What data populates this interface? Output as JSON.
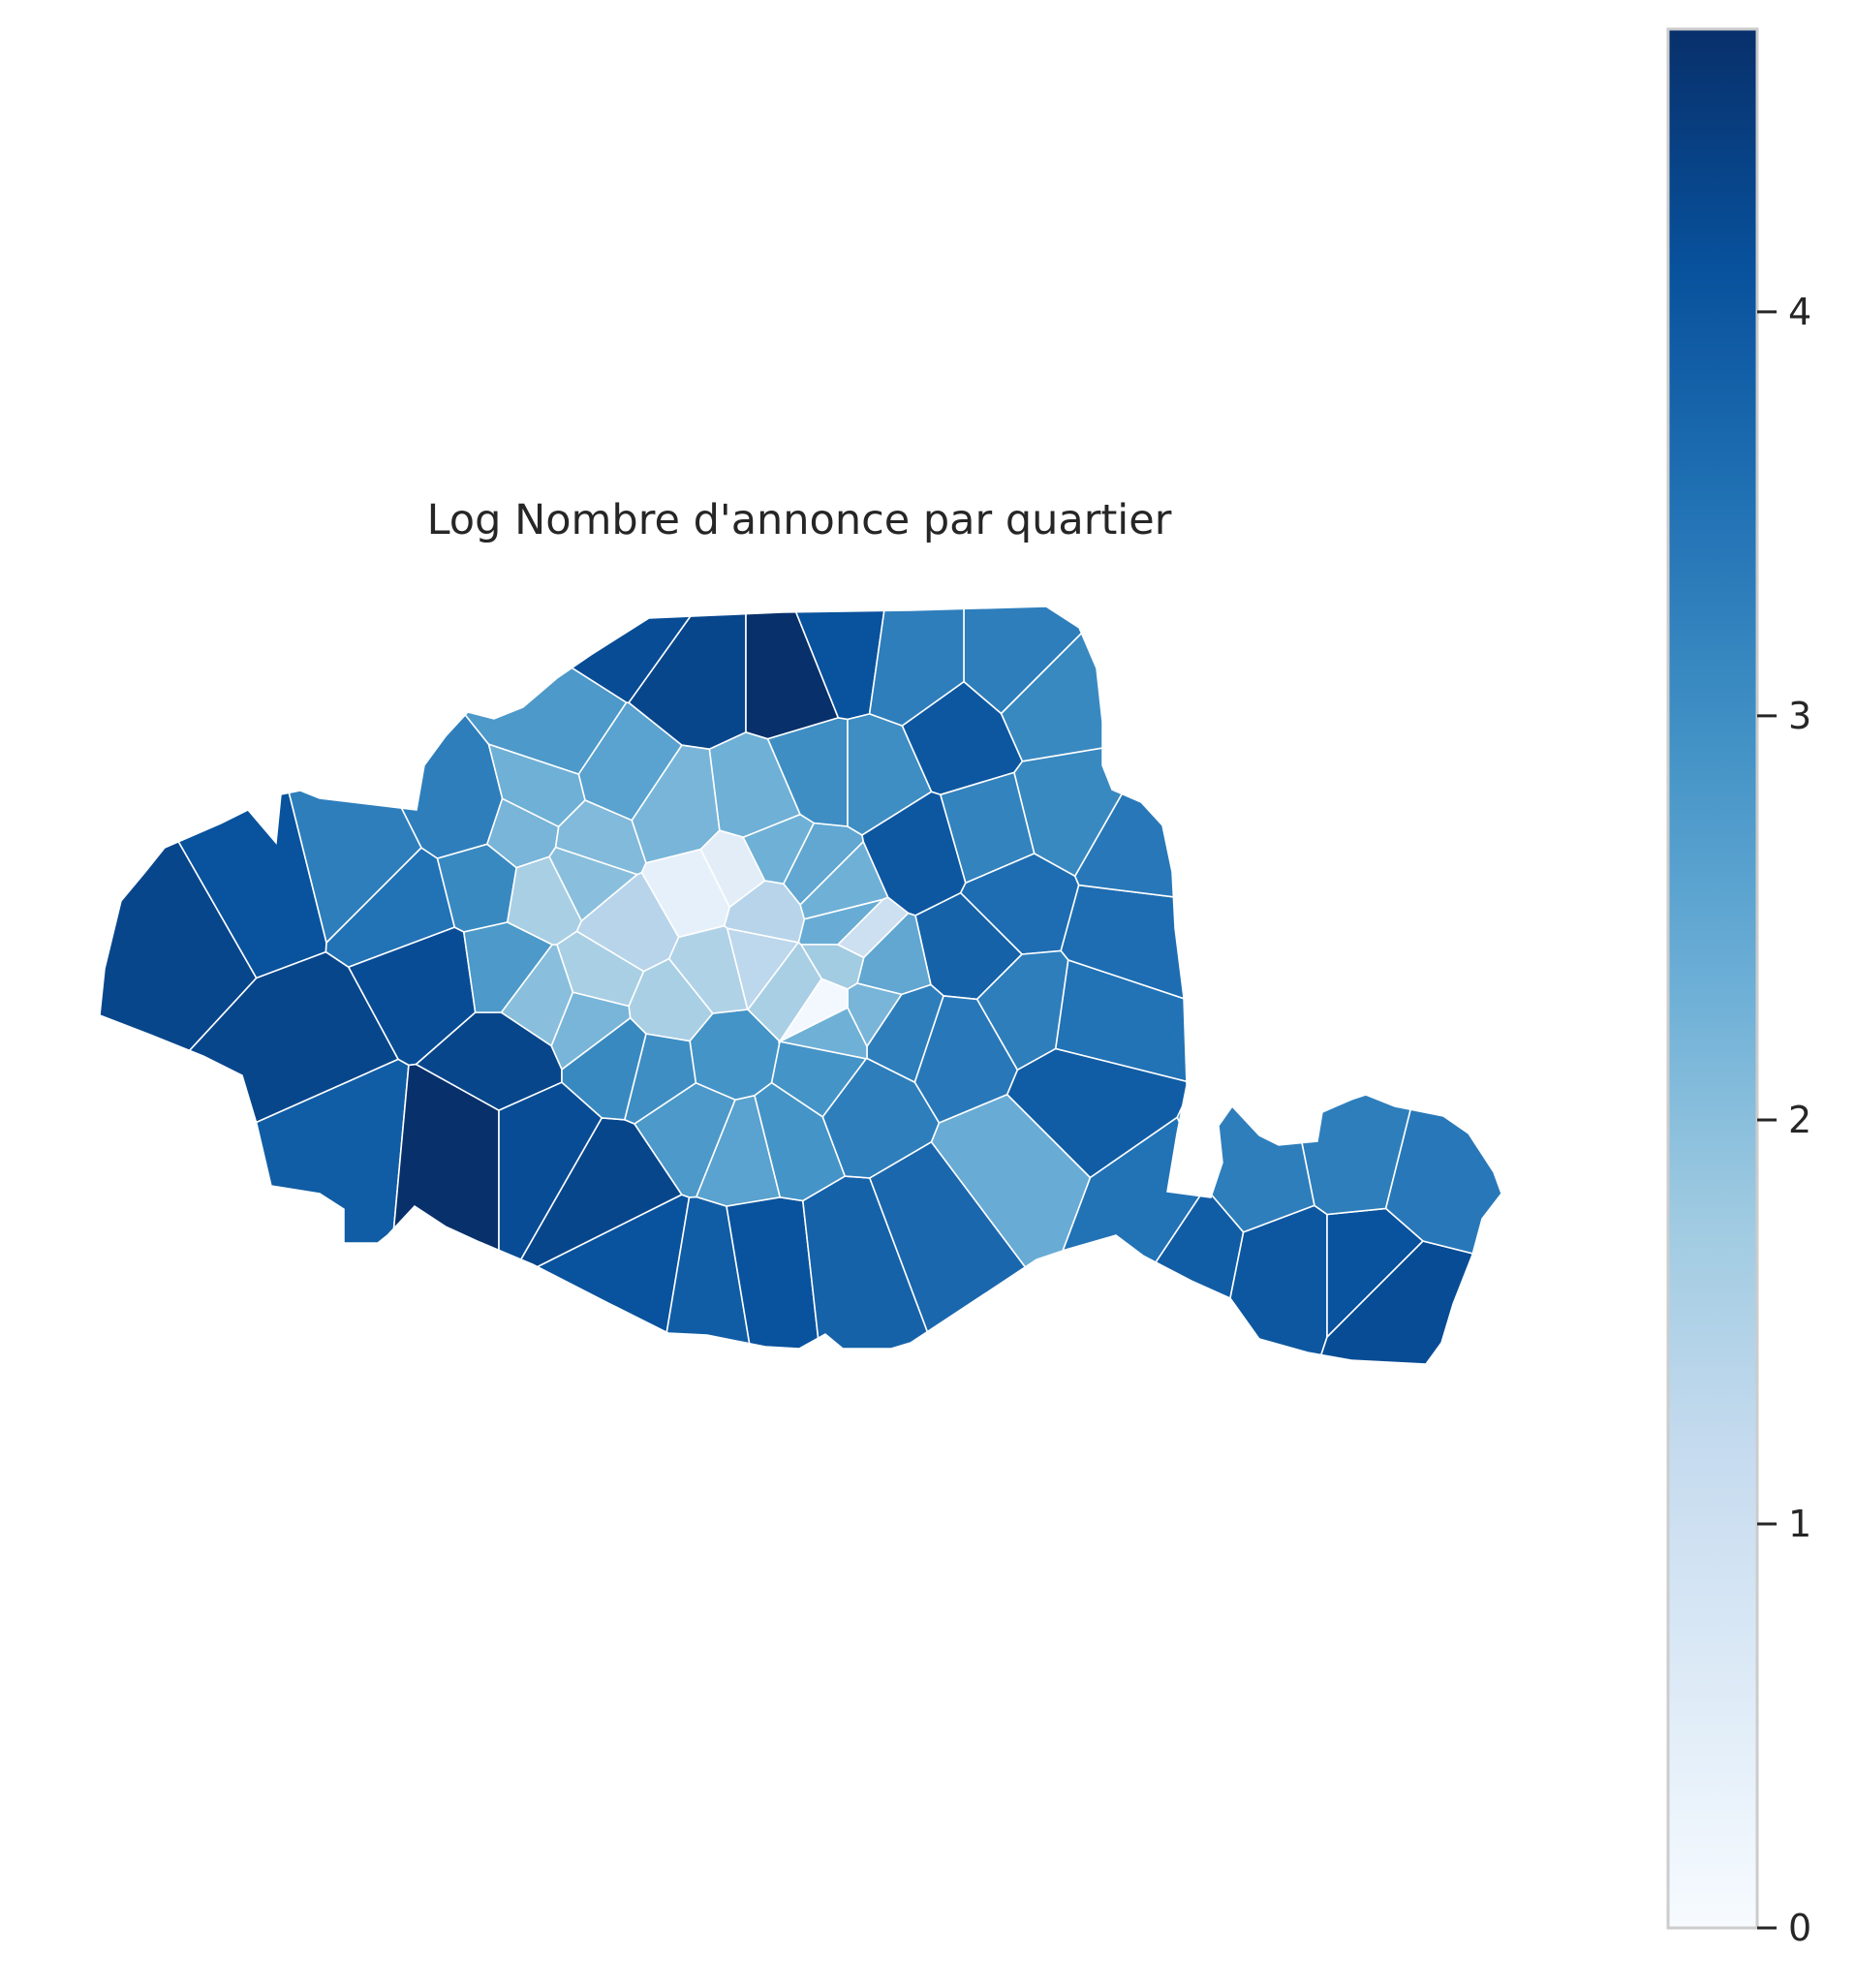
{
  "chart_data": {
    "type": "choropleth",
    "title": "Log Nombre d'annonce par quartier",
    "colormap": "Blues",
    "colors": {
      "low": "#f7fbff",
      "mid_light": "#c6dbef",
      "mid": "#6baed6",
      "mid_dark": "#2171b5",
      "high": "#08306b",
      "border": "#ffffff",
      "colorbar_frame": "#cccccc"
    },
    "value_range": [
      0,
      4.7
    ],
    "colorbar": {
      "orientation": "vertical",
      "placement": "right",
      "ticks": [
        0,
        1,
        2,
        3,
        4
      ],
      "tick_labels": [
        "0",
        "1",
        "2",
        "3",
        "4"
      ]
    },
    "legend": "none",
    "axes": "off",
    "region_count": 80
  }
}
